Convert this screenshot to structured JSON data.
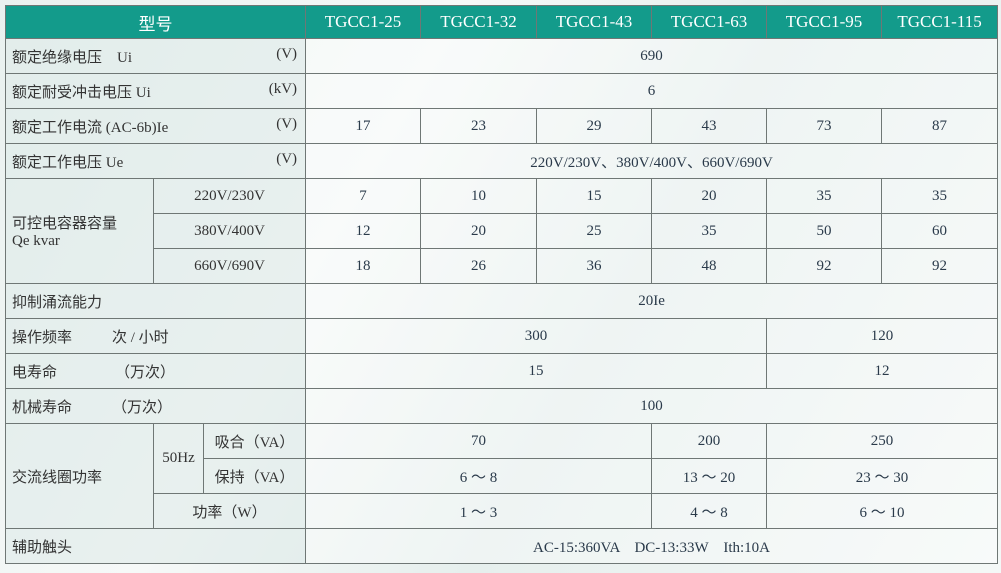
{
  "header": {
    "model_label": "型号",
    "models": [
      "TGCC1-25",
      "TGCC1-32",
      "TGCC1-43",
      "TGCC1-63",
      "TGCC1-95",
      "TGCC1-115"
    ]
  },
  "rows": {
    "ui": {
      "label": "额定绝缘电压　Ui",
      "unit": "(V)",
      "value": "690"
    },
    "uimp": {
      "label": "额定耐受冲击电压 Ui",
      "unit": "(kV)",
      "value": "6"
    },
    "ie": {
      "label": "额定工作电流 (AC-6b)Ie",
      "unit": "(V)",
      "values": [
        "17",
        "23",
        "29",
        "43",
        "73",
        "87"
      ]
    },
    "ue": {
      "label": "额定工作电压 Ue",
      "unit": "(V)",
      "value": "220V/230V、380V/400V、660V/690V"
    },
    "qe": {
      "label1": "可控电容器容量",
      "label2": "Qe kvar",
      "sub": [
        {
          "voltage": "220V/230V",
          "values": [
            "7",
            "10",
            "15",
            "20",
            "35",
            "35"
          ]
        },
        {
          "voltage": "380V/400V",
          "values": [
            "12",
            "20",
            "25",
            "35",
            "50",
            "60"
          ]
        },
        {
          "voltage": "660V/690V",
          "values": [
            "18",
            "26",
            "36",
            "48",
            "92",
            "92"
          ]
        }
      ]
    },
    "inrush": {
      "label": "抑制涌流能力",
      "value": "20Ie"
    },
    "freq": {
      "label": "操作频率",
      "unit": "次 / 小时",
      "values": [
        "300",
        "120"
      ]
    },
    "elife": {
      "label": "电寿命",
      "unit": "（万次）",
      "values": [
        "15",
        "12"
      ]
    },
    "mlife": {
      "label": "机械寿命",
      "unit": "（万次）",
      "value": "100"
    },
    "coil": {
      "label": "交流线圈功率",
      "freq": "50Hz",
      "pickup": {
        "label": "吸合（VA）",
        "values": [
          "70",
          "200",
          "250"
        ]
      },
      "hold": {
        "label": "保持（VA）",
        "values": [
          "6 ～ 8",
          "13 ～ 20",
          "23 ～ 30"
        ]
      },
      "power": {
        "label": "功率（W）",
        "values": [
          "1 ～ 3",
          "4 ～ 8",
          "6 ～ 10"
        ]
      }
    },
    "aux": {
      "label": "辅助触头",
      "value": "AC-15:360VA　DC-13:33W　Ith:10A"
    }
  }
}
